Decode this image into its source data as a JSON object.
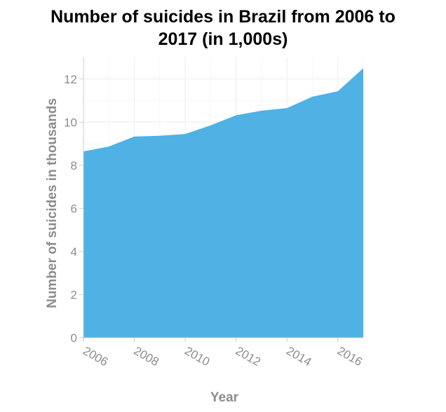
{
  "chart_data": {
    "type": "area",
    "title_lines": [
      "Number of suicides in Brazil from 2006 to",
      "2017 (in 1,000s)"
    ],
    "xlabel": "Year",
    "ylabel": "Number of suicides in thousands",
    "x": [
      2006,
      2007,
      2008,
      2009,
      2010,
      2011,
      2012,
      2013,
      2014,
      2015,
      2016,
      2017
    ],
    "series": [
      {
        "values": [
          8.64,
          8.87,
          9.33,
          9.37,
          9.45,
          9.85,
          10.32,
          10.53,
          10.65,
          11.18,
          11.43,
          12.5
        ]
      }
    ],
    "xlim": [
      2006,
      2017
    ],
    "ylim": [
      0,
      13
    ],
    "xticks": [
      2006,
      2008,
      2010,
      2012,
      2014,
      2016
    ],
    "yticks": [
      0,
      2,
      4,
      6,
      8,
      10,
      12
    ],
    "grid": true,
    "fill_color": "#4fb1e4",
    "grid_color": "#ececec",
    "axis_color": "#cccccc",
    "title_color": "#000000",
    "label_color": "#8c8c8c"
  }
}
